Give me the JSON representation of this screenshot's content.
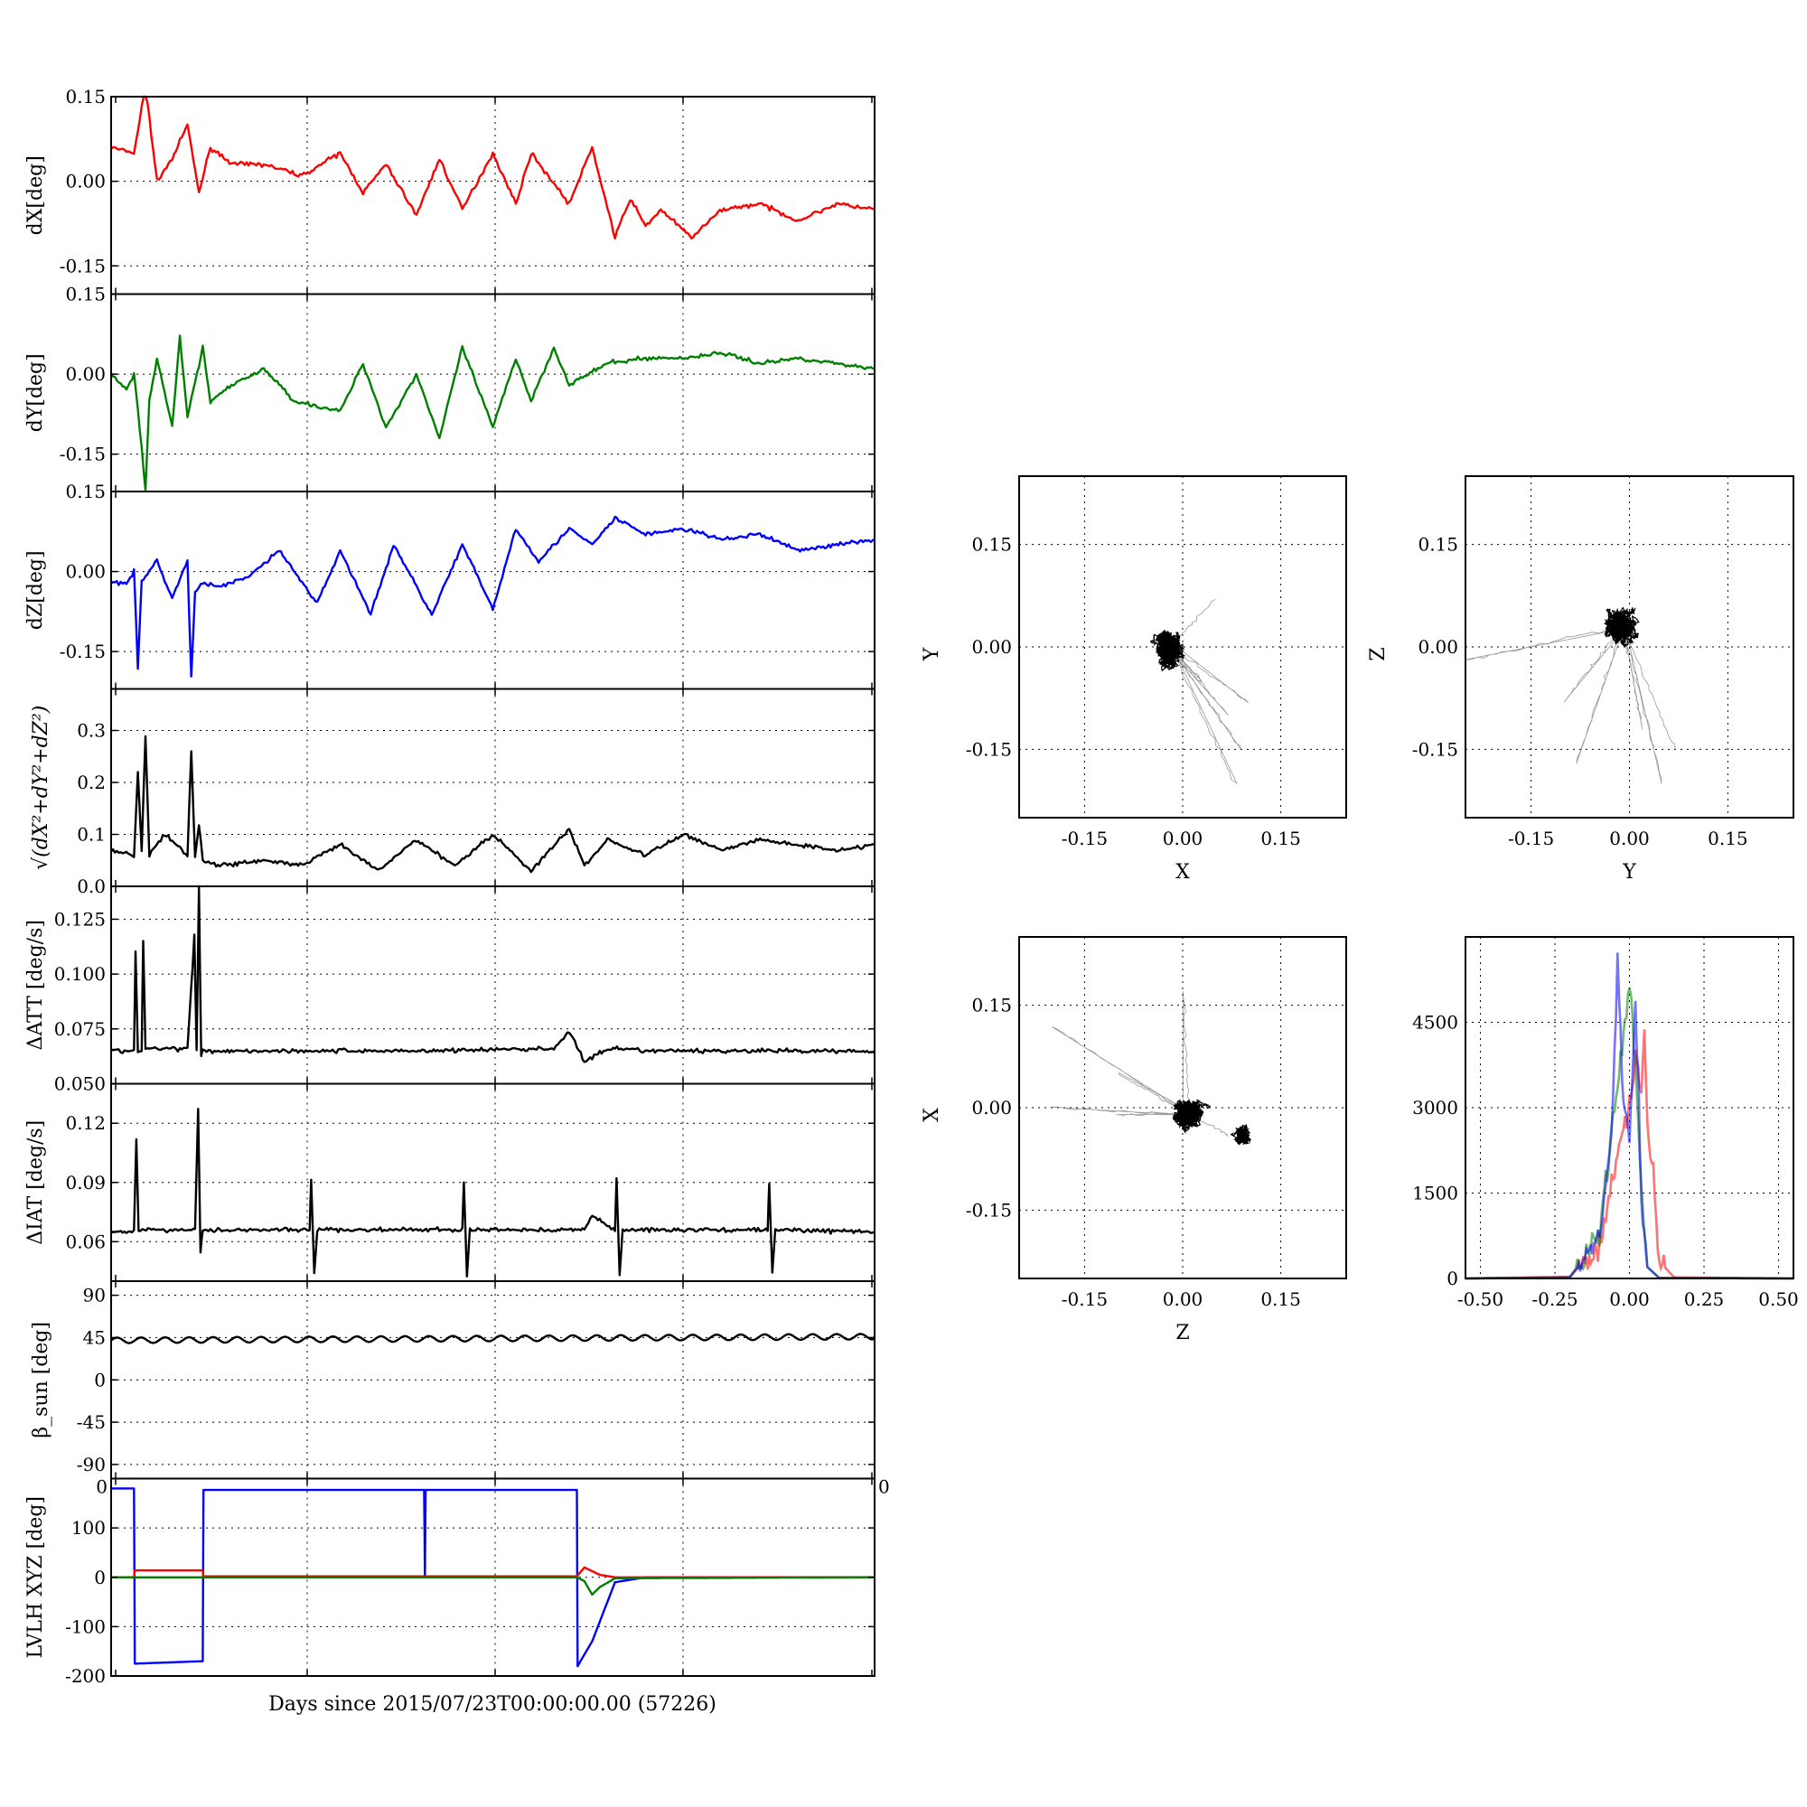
{
  "figure": {
    "xlabel": "Days since 2015/07/23T00:00:00.00 (57226)"
  },
  "colors": {
    "x": "#ff0000",
    "y": "#008000",
    "z": "#0000ff",
    "k": "#000000"
  },
  "chart_data": [
    {
      "id": "dX",
      "type": "line",
      "ylabel": "dX[deg]",
      "ylim": [
        -0.2,
        0.15
      ],
      "yticks": [
        "0.15",
        "0.00",
        "-0.15"
      ],
      "ytick_values": [
        0.15,
        0.0,
        -0.15
      ],
      "grid": true,
      "series": [
        {
          "color": "#ff0000",
          "x": [
            0.0,
            0.03,
            0.045,
            0.06,
            0.08,
            0.1,
            0.115,
            0.13,
            0.16,
            0.2,
            0.25,
            0.3,
            0.33,
            0.36,
            0.4,
            0.43,
            0.46,
            0.5,
            0.53,
            0.55,
            0.6,
            0.63,
            0.66,
            0.68,
            0.7,
            0.72,
            0.76,
            0.8,
            0.85,
            0.9,
            0.95,
            1.0
          ],
          "y": [
            0.06,
            0.05,
            0.17,
            0.0,
            0.04,
            0.1,
            -0.02,
            0.06,
            0.03,
            0.03,
            0.01,
            0.05,
            -0.02,
            0.03,
            -0.06,
            0.04,
            -0.05,
            0.05,
            -0.04,
            0.05,
            -0.04,
            0.06,
            -0.1,
            -0.03,
            -0.08,
            -0.05,
            -0.1,
            -0.05,
            -0.04,
            -0.07,
            -0.04,
            -0.05
          ]
        }
      ]
    },
    {
      "id": "dY",
      "type": "line",
      "ylabel": "dY[deg]",
      "ylim": [
        -0.22,
        0.15
      ],
      "yticks": [
        "0.15",
        "0.00",
        "-0.15"
      ],
      "ytick_values": [
        0.15,
        0.0,
        -0.15
      ],
      "grid": true,
      "series": [
        {
          "color": "#008000",
          "x": [
            0.0,
            0.02,
            0.03,
            0.04,
            0.045,
            0.05,
            0.06,
            0.08,
            0.09,
            0.1,
            0.12,
            0.13,
            0.16,
            0.2,
            0.24,
            0.3,
            0.33,
            0.36,
            0.4,
            0.43,
            0.46,
            0.5,
            0.53,
            0.55,
            0.58,
            0.6,
            0.65,
            0.7,
            0.75,
            0.8,
            0.85,
            0.9,
            0.95,
            1.0
          ],
          "y": [
            0.0,
            -0.03,
            0.0,
            -0.14,
            -0.22,
            -0.05,
            0.03,
            -0.1,
            0.07,
            -0.08,
            0.05,
            -0.05,
            -0.02,
            0.01,
            -0.05,
            -0.07,
            0.02,
            -0.1,
            0.0,
            -0.12,
            0.05,
            -0.1,
            0.03,
            -0.05,
            0.05,
            -0.02,
            0.02,
            0.03,
            0.03,
            0.04,
            0.02,
            0.03,
            0.02,
            0.01
          ]
        }
      ]
    },
    {
      "id": "dZ",
      "type": "line",
      "ylabel": "dZ[deg]",
      "ylim": [
        -0.22,
        0.15
      ],
      "yticks": [
        "0.15",
        "0.00",
        "-0.15"
      ],
      "ytick_values": [
        0.15,
        0.0,
        -0.15
      ],
      "grid": true,
      "series": [
        {
          "color": "#0000ff",
          "x": [
            0.0,
            0.02,
            0.03,
            0.035,
            0.04,
            0.06,
            0.08,
            0.1,
            0.105,
            0.11,
            0.12,
            0.14,
            0.18,
            0.22,
            0.27,
            0.3,
            0.34,
            0.37,
            0.42,
            0.46,
            0.5,
            0.53,
            0.56,
            0.6,
            0.63,
            0.66,
            0.7,
            0.75,
            0.8,
            0.85,
            0.9,
            0.95,
            1.0
          ],
          "y": [
            -0.02,
            -0.02,
            0.0,
            -0.18,
            -0.02,
            0.02,
            -0.05,
            0.02,
            -0.2,
            -0.04,
            -0.02,
            -0.03,
            -0.01,
            0.04,
            -0.06,
            0.04,
            -0.08,
            0.05,
            -0.08,
            0.05,
            -0.07,
            0.08,
            0.02,
            0.08,
            0.05,
            0.1,
            0.07,
            0.08,
            0.06,
            0.07,
            0.04,
            0.05,
            0.06
          ]
        }
      ]
    },
    {
      "id": "dR",
      "type": "line",
      "ylabel": "√(dX²+dY²+dZ²)",
      "ylim": [
        0.0,
        0.38
      ],
      "yticks": [
        "0.3",
        "0.2",
        "0.1",
        "0.0"
      ],
      "ytick_values": [
        0.3,
        0.2,
        0.1,
        0.0
      ],
      "grid": true,
      "series": [
        {
          "color": "#000000",
          "x": [
            0.0,
            0.03,
            0.035,
            0.04,
            0.045,
            0.05,
            0.07,
            0.1,
            0.105,
            0.11,
            0.115,
            0.12,
            0.14,
            0.2,
            0.25,
            0.3,
            0.35,
            0.4,
            0.45,
            0.5,
            0.55,
            0.6,
            0.62,
            0.65,
            0.7,
            0.75,
            0.8,
            0.85,
            0.9,
            0.95,
            1.0
          ],
          "y": [
            0.07,
            0.06,
            0.22,
            0.07,
            0.29,
            0.06,
            0.1,
            0.06,
            0.26,
            0.06,
            0.12,
            0.05,
            0.04,
            0.05,
            0.04,
            0.08,
            0.03,
            0.09,
            0.04,
            0.1,
            0.03,
            0.11,
            0.04,
            0.09,
            0.06,
            0.1,
            0.07,
            0.09,
            0.08,
            0.07,
            0.08
          ]
        }
      ]
    },
    {
      "id": "dATT",
      "type": "line",
      "ylabel": "ΔATT [deg/s]",
      "ylim": [
        0.05,
        0.14
      ],
      "yticks": [
        "0.125",
        "0.100",
        "0.075",
        "0.050"
      ],
      "ytick_values": [
        0.125,
        0.1,
        0.075,
        0.05
      ],
      "grid": true,
      "series": [
        {
          "color": "#000000",
          "x": [
            0.0,
            0.03,
            0.032,
            0.035,
            0.04,
            0.042,
            0.045,
            0.1,
            0.109,
            0.112,
            0.115,
            0.118,
            0.12,
            0.2,
            0.4,
            0.58,
            0.6,
            0.62,
            0.64,
            0.66,
            0.7,
            0.8,
            0.9,
            1.0
          ],
          "y": [
            0.065,
            0.065,
            0.11,
            0.065,
            0.065,
            0.115,
            0.066,
            0.066,
            0.117,
            0.065,
            0.14,
            0.063,
            0.065,
            0.065,
            0.065,
            0.066,
            0.074,
            0.06,
            0.064,
            0.066,
            0.065,
            0.065,
            0.065,
            0.065
          ]
        }
      ]
    },
    {
      "id": "dIAT",
      "type": "line",
      "ylabel": "ΔIAT [deg/s]",
      "ylim": [
        0.04,
        0.14
      ],
      "yticks": [
        "0.12",
        "0.09",
        "0.06"
      ],
      "ytick_values": [
        0.12,
        0.09,
        0.06
      ],
      "grid": true,
      "series": [
        {
          "color": "#000000",
          "x": [
            0.0,
            0.03,
            0.033,
            0.036,
            0.11,
            0.114,
            0.117,
            0.12,
            0.26,
            0.262,
            0.266,
            0.27,
            0.46,
            0.462,
            0.466,
            0.47,
            0.62,
            0.63,
            0.66,
            0.662,
            0.666,
            0.67,
            0.86,
            0.862,
            0.866,
            0.87,
            1.0
          ],
          "y": [
            0.065,
            0.065,
            0.112,
            0.066,
            0.066,
            0.128,
            0.055,
            0.066,
            0.066,
            0.092,
            0.044,
            0.066,
            0.066,
            0.09,
            0.042,
            0.066,
            0.066,
            0.073,
            0.066,
            0.092,
            0.043,
            0.066,
            0.066,
            0.09,
            0.044,
            0.066,
            0.065
          ]
        }
      ]
    },
    {
      "id": "beta",
      "type": "line",
      "ylabel": "β_sun [deg]",
      "ylim": [
        -105,
        105
      ],
      "yticks": [
        "90",
        "45",
        "0",
        "-45",
        "-90"
      ],
      "ytick_values": [
        90,
        45,
        0,
        -45,
        -90
      ],
      "grid": true,
      "series": [
        {
          "color": "#000000",
          "x": [
            0.0,
            0.25,
            0.5,
            0.75,
            1.0
          ],
          "y": [
            42,
            43,
            44,
            45,
            46
          ]
        }
      ]
    },
    {
      "id": "lvlh",
      "type": "line",
      "ylabel": "LVLH XYZ [deg]",
      "ylim": [
        -200,
        200
      ],
      "yticks": [
        "100",
        "0",
        "-100",
        "-200"
      ],
      "ytick_values": [
        100,
        0,
        -100,
        -200
      ],
      "top_tick_labels": [
        "0",
        "0"
      ],
      "grid": true,
      "series": [
        {
          "color": "#0000ff",
          "x": [
            0.0,
            0.03,
            0.031,
            0.12,
            0.121,
            0.41,
            0.411,
            0.412,
            0.413,
            0.61,
            0.611,
            0.63,
            0.66,
            0.7,
            1.0
          ],
          "y": [
            180,
            180,
            -175,
            -170,
            177,
            177,
            0,
            177,
            177,
            177,
            -180,
            -130,
            -10,
            0,
            0
          ]
        },
        {
          "color": "#ff0000",
          "x": [
            0.0,
            0.03,
            0.031,
            0.12,
            0.121,
            0.61,
            0.62,
            0.64,
            0.66,
            1.0
          ],
          "y": [
            0,
            0,
            14,
            14,
            2,
            2,
            20,
            5,
            0,
            0
          ]
        },
        {
          "color": "#008000",
          "x": [
            0.0,
            0.61,
            0.62,
            0.63,
            0.64,
            0.66,
            1.0
          ],
          "y": [
            0,
            0,
            -8,
            -35,
            -20,
            -2,
            0
          ]
        }
      ]
    },
    {
      "id": "xy_scatter",
      "type": "scatter",
      "xlabel": "X",
      "ylabel": "Y",
      "xlim": [
        -0.25,
        0.25
      ],
      "ylim": [
        -0.25,
        0.25
      ],
      "xticks": [
        "-0.15",
        "0.00",
        "0.15"
      ],
      "yticks": [
        "0.15",
        "0.00",
        "-0.15"
      ],
      "center": [
        -0.02,
        0.0
      ],
      "spread": [
        0.045,
        0.06
      ],
      "trail": [
        [
          0.03,
          -0.05
        ],
        [
          0.07,
          -0.1
        ],
        [
          0.09,
          -0.15
        ],
        [
          0.08,
          -0.2
        ],
        [
          0.1,
          -0.08
        ],
        [
          0.05,
          0.07
        ]
      ],
      "grid": true
    },
    {
      "id": "yz_scatter",
      "type": "scatter",
      "xlabel": "Y",
      "ylabel": "Z",
      "xlim": [
        -0.25,
        0.25
      ],
      "ylim": [
        -0.25,
        0.25
      ],
      "xticks": [
        "-0.15",
        "0.00",
        "0.15"
      ],
      "yticks": [
        "0.15",
        "0.00",
        "-0.15"
      ],
      "center": [
        -0.01,
        0.03
      ],
      "spread": [
        0.05,
        0.07
      ],
      "trail": [
        [
          -0.25,
          -0.02
        ],
        [
          -0.1,
          -0.08
        ],
        [
          -0.08,
          -0.17
        ],
        [
          0.02,
          -0.12
        ],
        [
          0.05,
          -0.2
        ],
        [
          0.07,
          -0.15
        ]
      ],
      "grid": true
    },
    {
      "id": "zx_scatter",
      "type": "scatter",
      "xlabel": "Z",
      "ylabel": "X",
      "xlim": [
        -0.25,
        0.25
      ],
      "ylim": [
        -0.25,
        0.25
      ],
      "xticks": [
        "-0.15",
        "0.00",
        "0.15"
      ],
      "yticks": [
        "0.15",
        "0.00",
        "-0.15"
      ],
      "center": [
        0.01,
        -0.01
      ],
      "spread": [
        0.07,
        0.045
      ],
      "trail": [
        [
          -0.2,
          0.12
        ],
        [
          -0.1,
          0.05
        ],
        [
          0.0,
          0.17
        ],
        [
          -0.2,
          0.0
        ],
        [
          -0.1,
          -0.01
        ],
        [
          0.07,
          -0.04
        ]
      ],
      "grid": true
    },
    {
      "id": "hist",
      "type": "line",
      "xlim": [
        -0.55,
        0.55
      ],
      "ylim": [
        0,
        6000
      ],
      "xticks": [
        "-0.50",
        "-0.25",
        "0.00",
        "0.25",
        "0.50"
      ],
      "xtick_values": [
        -0.5,
        -0.25,
        0.0,
        0.25,
        0.5
      ],
      "yticks": [
        "4500",
        "3000",
        "1500",
        "0"
      ],
      "ytick_values": [
        4500,
        3000,
        1500,
        0
      ],
      "grid": true,
      "series": [
        {
          "color": "#ff0000",
          "x": [
            -0.55,
            -0.2,
            -0.1,
            -0.05,
            0.0,
            0.02,
            0.04,
            0.05,
            0.06,
            0.08,
            0.1,
            0.15,
            0.55
          ],
          "y": [
            0,
            30,
            600,
            2000,
            3000,
            3800,
            3200,
            4500,
            2500,
            1800,
            300,
            20,
            0
          ]
        },
        {
          "color": "#008000",
          "x": [
            -0.55,
            -0.2,
            -0.1,
            -0.05,
            -0.02,
            0.0,
            0.02,
            0.04,
            0.06,
            0.1,
            0.55
          ],
          "y": [
            0,
            20,
            800,
            3000,
            4200,
            5200,
            3800,
            1500,
            200,
            10,
            0
          ]
        },
        {
          "color": "#0000ff",
          "x": [
            -0.55,
            -0.2,
            -0.1,
            -0.06,
            -0.04,
            -0.02,
            0.0,
            0.02,
            0.03,
            0.04,
            0.06,
            0.1,
            0.55
          ],
          "y": [
            0,
            20,
            700,
            2500,
            5600,
            3000,
            2500,
            4800,
            3500,
            1200,
            200,
            10,
            0
          ]
        }
      ]
    }
  ]
}
